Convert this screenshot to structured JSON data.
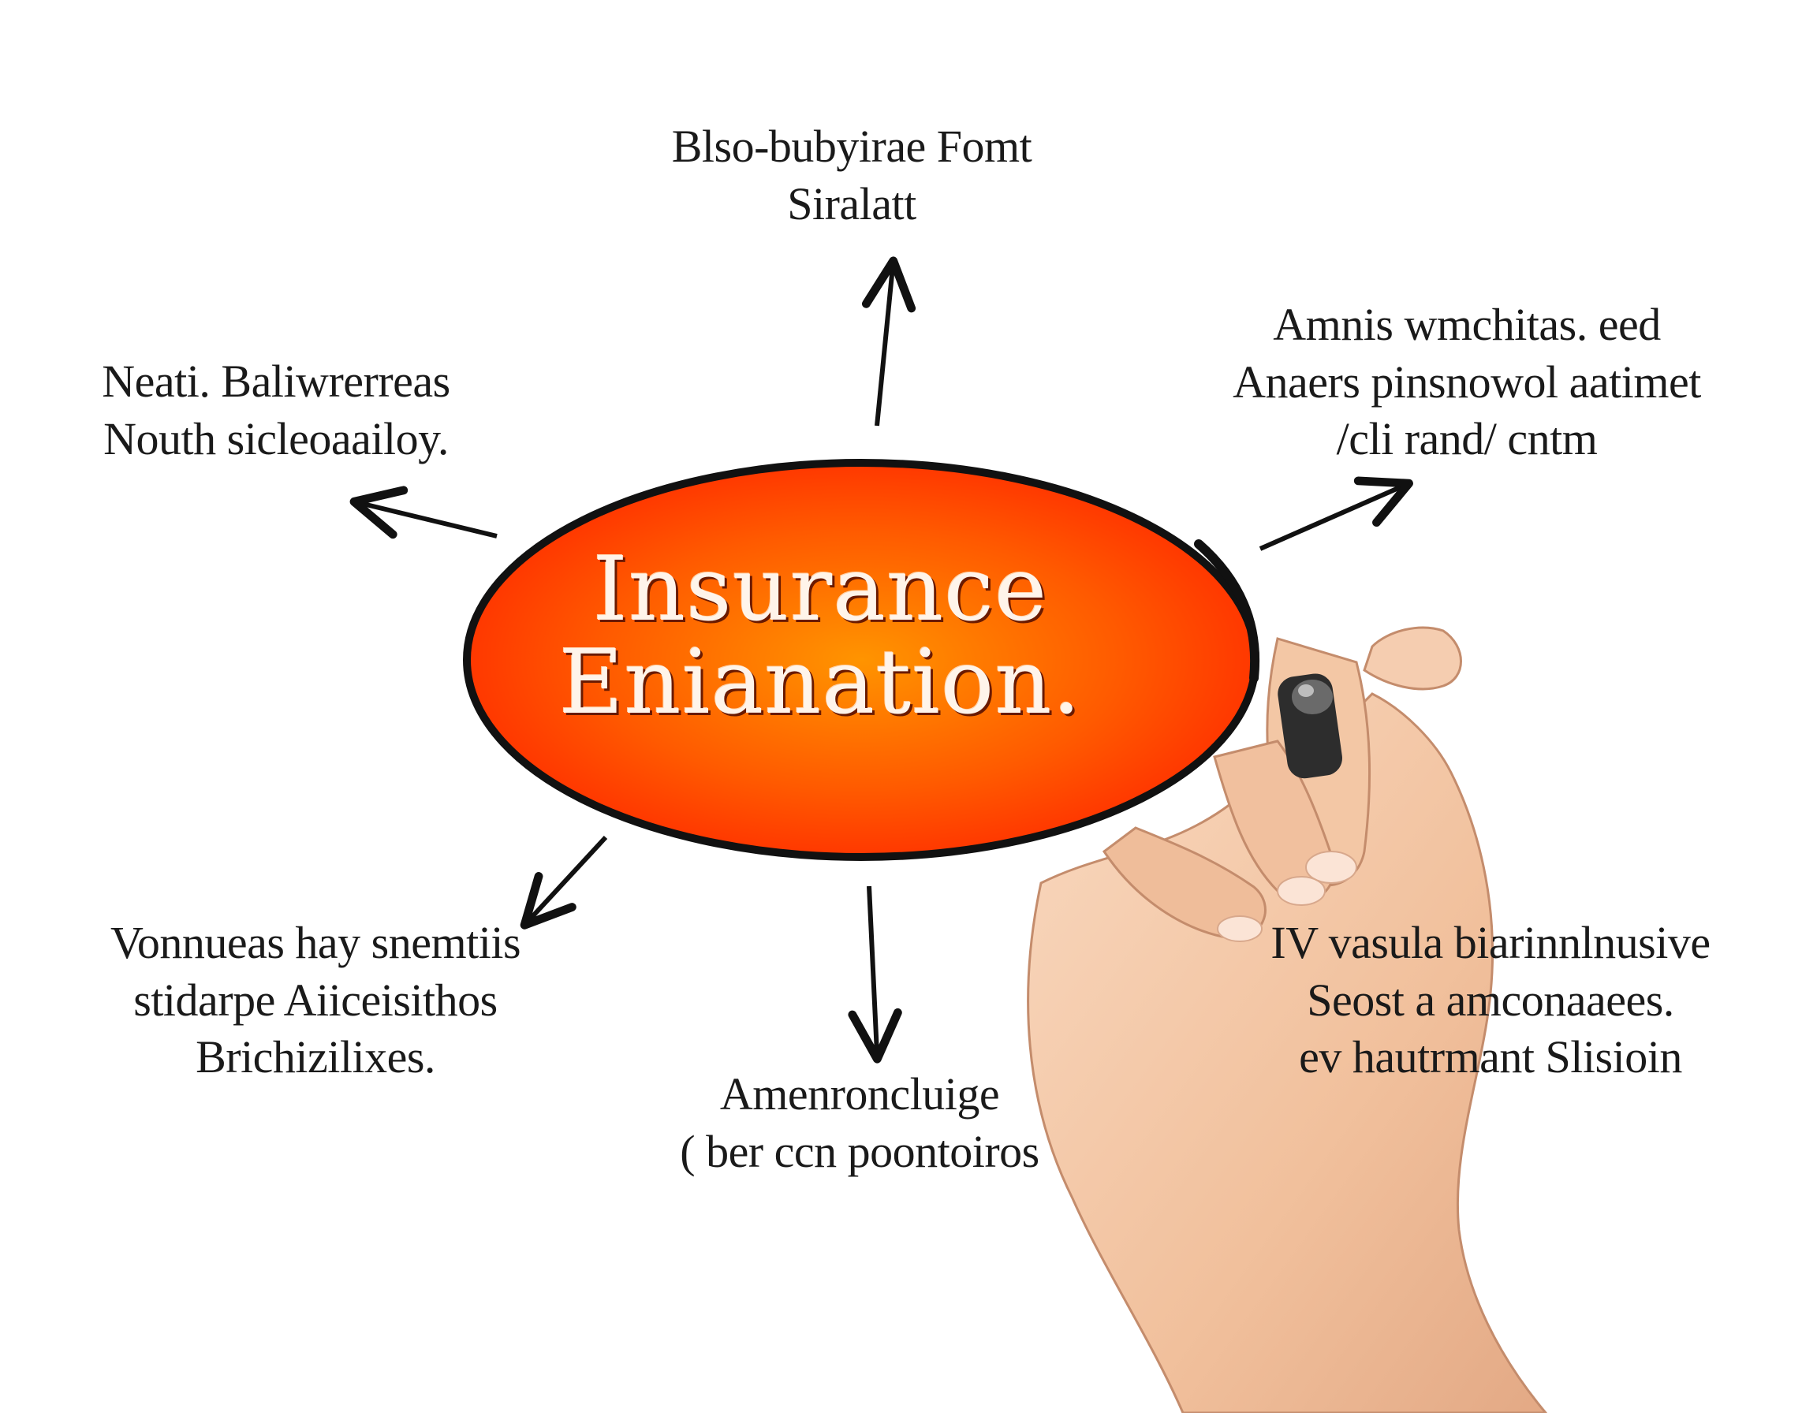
{
  "diagram": {
    "center": {
      "lines": [
        "Insurance",
        "Enianation."
      ],
      "fill_inner": "#ff8a00",
      "fill_outer": "#ff2a00",
      "outline": "#111111"
    },
    "nodes": [
      {
        "id": "top",
        "lines": [
          "Blso-bubyirae Fomt",
          "Siralatt"
        ]
      },
      {
        "id": "top-right",
        "lines": [
          "Amnis wmchitas. eed",
          "Anaers pinsnowol aatimet",
          "/cli rand/ cntm"
        ]
      },
      {
        "id": "left",
        "lines": [
          "Neati. Baliwrerreas",
          "Nouth sicleoaailoy."
        ]
      },
      {
        "id": "bottom-left",
        "lines": [
          "Vonnueas hay snemtiis",
          "stidarpe Aiiceisithos",
          "Brichizilixes."
        ]
      },
      {
        "id": "bottom",
        "lines": [
          "Amenroncluige",
          "( ber ccn poontoiros"
        ]
      },
      {
        "id": "bottom-right",
        "lines": [
          "IV vasula biarinnlnusive",
          "Seost a amconaaees.",
          "ev hautrmant Slisioin"
        ]
      }
    ],
    "colors": {
      "text": "#1a1a1a",
      "arrow": "#111111",
      "skin": "#f4c8a8",
      "skin_shadow": "#d99c7c",
      "pen": "#2d2d2d"
    }
  }
}
